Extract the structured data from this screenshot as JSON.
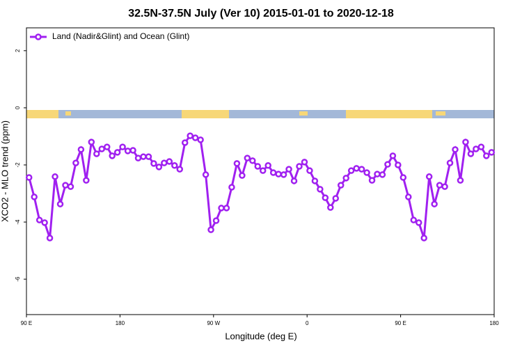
{
  "chart_data": {
    "type": "line",
    "title": "32.5N-37.5N July (Ver 10)   2015-01-01 to 2020-12-18",
    "x_label": "Longitude (deg E)",
    "y_label": "XCO2 - MLO trend (ppm)",
    "xlim": [
      90,
      540
    ],
    "xticks": [
      {
        "value": 90,
        "label": "90 E"
      },
      180,
      {
        "value": 270,
        "label": "90 W"
      },
      {
        "value": 360,
        "label": "0"
      },
      {
        "value": 450,
        "label": "90 E"
      },
      {
        "value": 540,
        "label": "180"
      }
    ],
    "ylim": [
      -7.24,
      2.8
    ],
    "yticks": [
      -6,
      -4,
      -2,
      0,
      2
    ],
    "legend": "top-left",
    "x": [
      92.5,
      97.5,
      102.5,
      107.5,
      112.5,
      117.5,
      122.5,
      127.5,
      132.5,
      137.5,
      142.5,
      147.5,
      152.5,
      157.5,
      162.5,
      167.5,
      172.5,
      177.5,
      182.5,
      187.5,
      192.5,
      197.5,
      202.5,
      207.5,
      212.5,
      217.5,
      222.5,
      227.5,
      232.5,
      237.5,
      242.5,
      247.5,
      252.5,
      257.5,
      262.5,
      267.5,
      272.5,
      277.5,
      282.5,
      287.5,
      292.5,
      297.5,
      302.5,
      307.5,
      312.5,
      317.5,
      322.5,
      327.5,
      332.5,
      337.5,
      342.5,
      347.5,
      352.5,
      357.5,
      362.5,
      367.5,
      372.5,
      377.5,
      382.5,
      387.5,
      392.5,
      397.5,
      402.5,
      407.5,
      412.5,
      417.5,
      422.5,
      427.5,
      432.5,
      437.5,
      442.5,
      447.5,
      452.5,
      457.5,
      462.5,
      467.5,
      472.5,
      477.5,
      482.5,
      487.5,
      492.5,
      497.5,
      502.5,
      507.5,
      512.5,
      517.5,
      522.5,
      527.5,
      532.5,
      537.5
    ],
    "series": [
      {
        "name": "Land (Nadir&Glint) and Ocean (Glint)",
        "color": "#a020f0",
        "values": [
          -2.44,
          -3.12,
          -3.93,
          -4.02,
          -4.56,
          -2.41,
          -3.37,
          -2.71,
          -2.76,
          -1.93,
          -1.46,
          -2.54,
          -1.2,
          -1.61,
          -1.44,
          -1.37,
          -1.68,
          -1.56,
          -1.37,
          -1.51,
          -1.49,
          -1.76,
          -1.71,
          -1.71,
          -1.95,
          -2.07,
          -1.93,
          -1.88,
          -2.02,
          -2.15,
          -1.22,
          -0.98,
          -1.05,
          -1.12,
          -2.34,
          -4.27,
          -3.95,
          -3.51,
          -3.51,
          -2.78,
          -1.95,
          -2.37,
          -1.76,
          -1.85,
          -2.05,
          -2.2,
          -2.02,
          -2.27,
          -2.32,
          -2.34,
          -2.15,
          -2.56,
          -2.05,
          -1.9,
          -2.2,
          -2.56,
          -2.85,
          -3.15,
          -3.49,
          -3.17,
          -2.71,
          -2.46,
          -2.2,
          -2.12,
          -2.15,
          -2.27,
          -2.54,
          -2.32,
          -2.34,
          -1.98,
          -1.68,
          -2.0,
          -2.44,
          -3.12,
          -3.93,
          -4.02,
          -4.56,
          -2.41,
          -3.37,
          -2.71,
          -2.76,
          -1.93,
          -1.46,
          -2.54,
          -1.2,
          -1.61,
          -1.44,
          -1.37,
          -1.68,
          -1.56
        ]
      }
    ]
  }
}
